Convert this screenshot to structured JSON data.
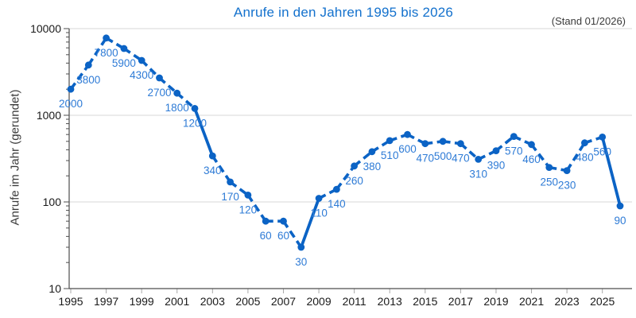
{
  "chart_data": {
    "type": "line",
    "title": "Anrufe in den Jahren 1995 bis 2026",
    "annotation": "(Stand 01/2026)",
    "xlabel": "",
    "ylabel": "Anrufe im Jahr (gerundet)",
    "yscale": "log",
    "ylim": [
      10,
      10000
    ],
    "yticks": [
      10,
      100,
      1000,
      10000
    ],
    "xticks": [
      1995,
      1997,
      1999,
      2001,
      2003,
      2005,
      2007,
      2009,
      2011,
      2013,
      2015,
      2017,
      2019,
      2021,
      2023,
      2025
    ],
    "years": [
      1995,
      1996,
      1997,
      1998,
      1999,
      2000,
      2001,
      2002,
      2003,
      2004,
      2005,
      2006,
      2007,
      2008,
      2009,
      2010,
      2011,
      2012,
      2013,
      2014,
      2015,
      2016,
      2017,
      2018,
      2019,
      2020,
      2021,
      2022,
      2023,
      2024,
      2025,
      2026
    ],
    "values": [
      2000,
      3800,
      7800,
      5900,
      4300,
      2700,
      1800,
      1200,
      340,
      170,
      120,
      60,
      60,
      30,
      110,
      140,
      260,
      380,
      510,
      600,
      470,
      500,
      470,
      310,
      390,
      570,
      460,
      250,
      230,
      480,
      560,
      90
    ],
    "series_name": "Anrufe",
    "style": {
      "line": "dashed",
      "markers": "circle",
      "grid": "horizontal-major",
      "legend": false,
      "data_labels": "below-points"
    },
    "colors": {
      "series": "#0b63c5",
      "data_label": "#2e7bd6",
      "title": "#1371cd",
      "annotation": "#3a3a3a",
      "ylabel": "#3a3a3a",
      "tick_label": "#1a1a1a",
      "axis": "#4d4d4d",
      "x_tick": "#a8a8a8",
      "grid": "#d7d7d7"
    }
  }
}
